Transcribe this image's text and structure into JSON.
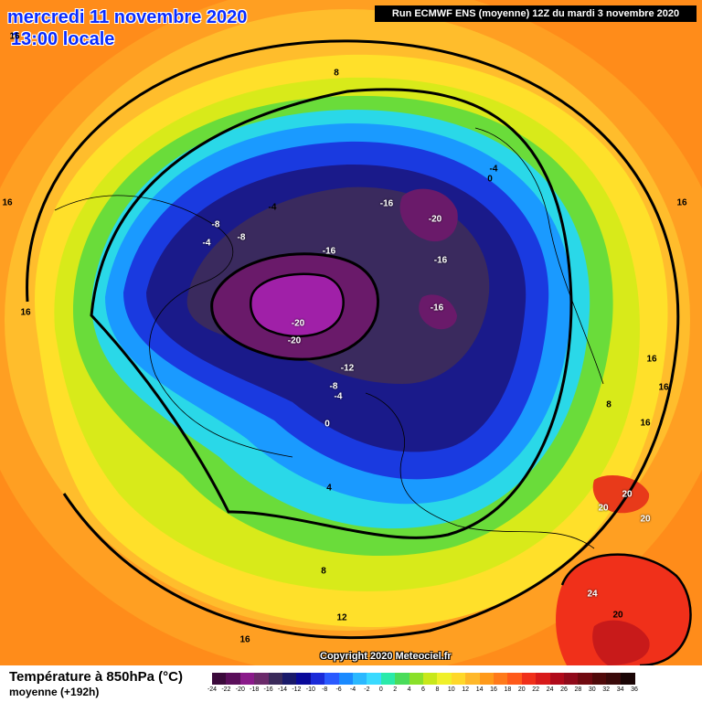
{
  "header": {
    "date": "mercredi 11 novembre 2020",
    "time": "13:00 locale",
    "run": "Run ECMWF ENS (moyenne) 12Z du mardi 3 novembre 2020"
  },
  "copyright": "Copyright 2020 Meteociel.fr",
  "footer": {
    "title": "Température à 850hPa (°C)",
    "subtitle": "moyenne  (+192h)"
  },
  "map_labels": [
    {
      "text": "8"
    },
    {
      "text": "16"
    },
    {
      "text": "-16"
    },
    {
      "text": "-20"
    },
    {
      "text": "-16"
    },
    {
      "text": "-16"
    },
    {
      "text": "-16"
    },
    {
      "text": "-20"
    },
    {
      "text": "-20"
    },
    {
      "text": "-12"
    },
    {
      "text": "-8"
    },
    {
      "text": "-4"
    },
    {
      "text": "0"
    },
    {
      "text": "-4"
    },
    {
      "text": "-8"
    },
    {
      "text": "-8"
    },
    {
      "text": "-4"
    },
    {
      "text": "-4"
    },
    {
      "text": "16"
    },
    {
      "text": "16"
    },
    {
      "text": "16"
    },
    {
      "text": "16"
    },
    {
      "text": "16"
    },
    {
      "text": "16"
    },
    {
      "text": "8"
    },
    {
      "text": "20"
    },
    {
      "text": "20"
    },
    {
      "text": "20"
    },
    {
      "text": "24"
    },
    {
      "text": "20"
    },
    {
      "text": "12"
    },
    {
      "text": "8"
    },
    {
      "text": "4"
    },
    {
      "text": "16"
    },
    {
      "text": "0"
    }
  ],
  "legend": {
    "ticks": [
      "-24",
      "-22",
      "-20",
      "-18",
      "-16",
      "-14",
      "-12",
      "-10",
      "-8",
      "-6",
      "-4",
      "-2",
      "0",
      "2",
      "4",
      "6",
      "8",
      "10",
      "12",
      "14",
      "16",
      "18",
      "20",
      "22",
      "24",
      "26",
      "28",
      "30",
      "32",
      "34",
      "36"
    ],
    "colors": [
      "#3b0a3b",
      "#5a0e5a",
      "#8a1a8a",
      "#6a2a6a",
      "#3a2a5a",
      "#1a1a6a",
      "#0a0a9a",
      "#1a2ad8",
      "#2a5aff",
      "#1a8aff",
      "#2ab8ff",
      "#3adaff",
      "#2aeaaa",
      "#4adc5a",
      "#8ae02a",
      "#c8e81a",
      "#f0f02a",
      "#ffd82a",
      "#ffb82a",
      "#ff9a1a",
      "#ff7a1a",
      "#ff5a1a",
      "#f0301a",
      "#d81a1a",
      "#b00a1a",
      "#900a1a",
      "#700a10",
      "#500a0a",
      "#3a0a0a",
      "#1a0505"
    ]
  }
}
